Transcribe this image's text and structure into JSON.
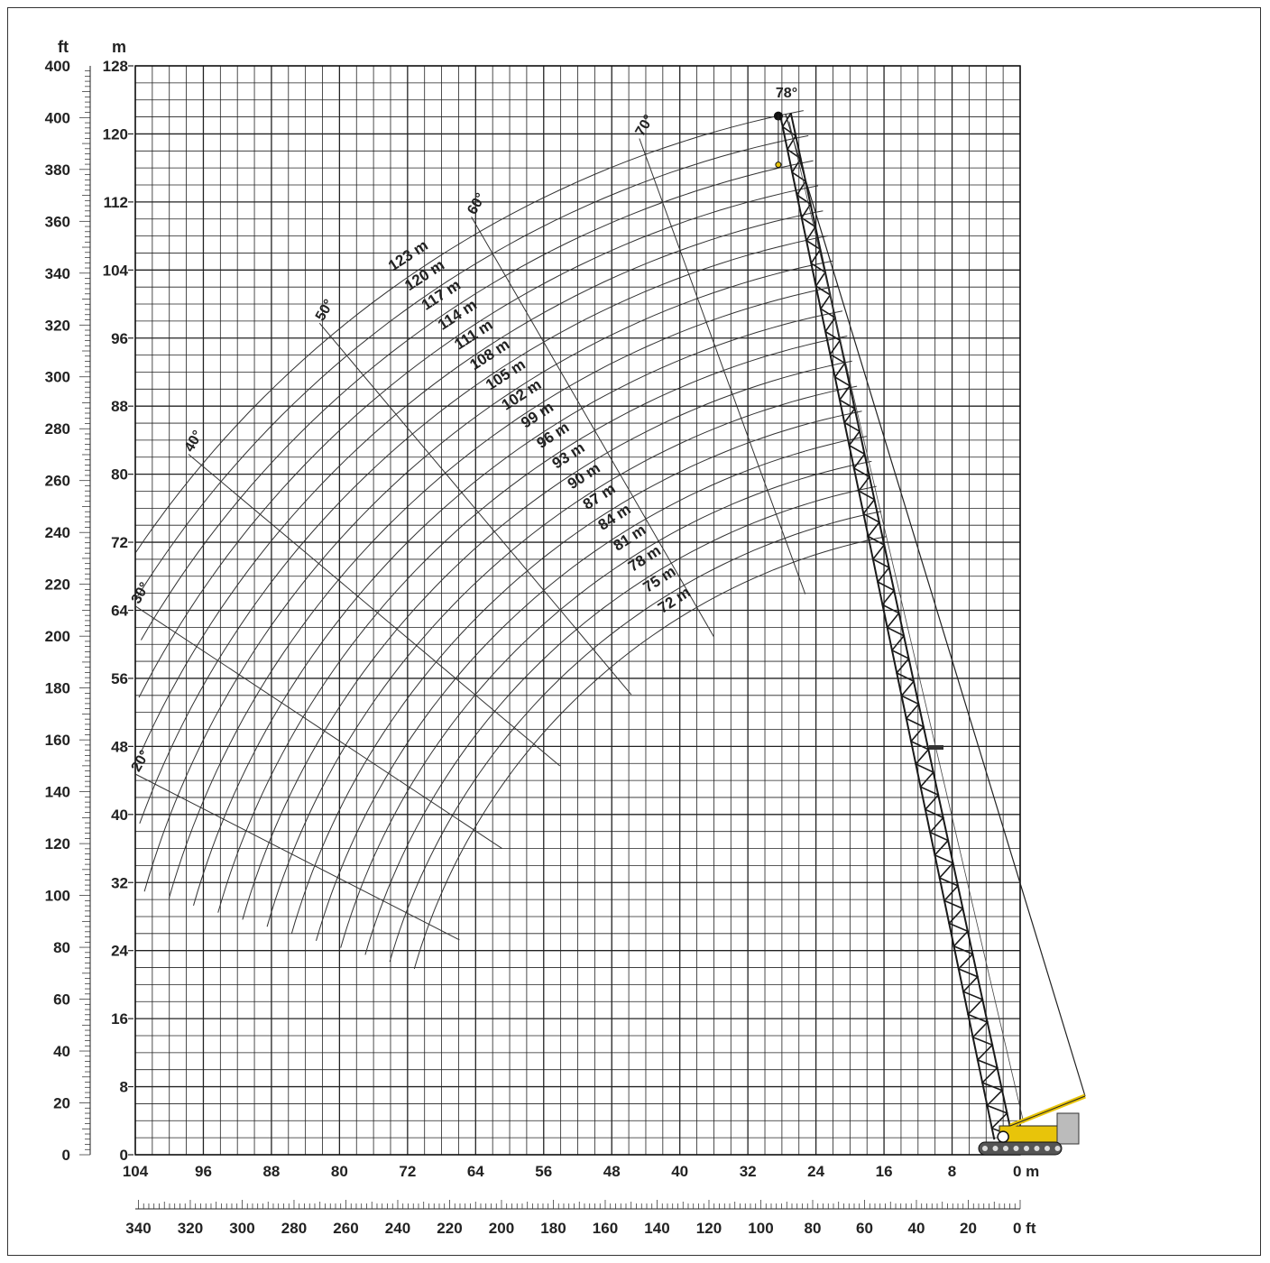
{
  "chart_data": {
    "type": "line",
    "title": "",
    "xlabel": "",
    "ylabel": "",
    "units": {
      "y_primary": "m",
      "y_secondary": "ft",
      "x_primary": "m",
      "x_secondary": "ft"
    },
    "xlim_m": [
      0,
      104
    ],
    "ylim_m": [
      0,
      128
    ],
    "grid": true,
    "x_ticks_m": [
      "104",
      "96",
      "88",
      "80",
      "72",
      "64",
      "56",
      "48",
      "40",
      "32",
      "24",
      "16",
      "8",
      "0 m"
    ],
    "x_ticks_ft": [
      "340",
      "320",
      "300",
      "280",
      "260",
      "240",
      "220",
      "200",
      "180",
      "160",
      "140",
      "120",
      "100",
      "80",
      "60",
      "40",
      "20",
      "0 ft"
    ],
    "y_ticks_m": [
      "0",
      "8",
      "16",
      "24",
      "32",
      "40",
      "48",
      "56",
      "64",
      "72",
      "80",
      "88",
      "96",
      "104",
      "112",
      "120",
      "128"
    ],
    "y_ticks_ft": [
      "0",
      "20",
      "40",
      "60",
      "80",
      "100",
      "120",
      "140",
      "160",
      "180",
      "200",
      "220",
      "240",
      "260",
      "280",
      "300",
      "320",
      "340",
      "360",
      "380",
      "400",
      "400"
    ],
    "series_note_lengths_m": [
      123,
      120,
      117,
      114,
      111,
      108,
      105,
      102,
      99,
      96,
      93,
      90,
      87,
      84,
      81,
      78,
      75,
      72
    ],
    "series_labels": [
      "123 m",
      "120 m",
      "117 m",
      "114 m",
      "111 m",
      "108 m",
      "105 m",
      "102 m",
      "99 m",
      "96 m",
      "93 m",
      "90 m",
      "87 m",
      "84 m",
      "81 m",
      "78 m",
      "75 m",
      "72 m"
    ],
    "angle_labels": [
      "20°",
      "30°",
      "40°",
      "50°",
      "60°",
      "70°",
      "78°"
    ],
    "angles_deg": [
      20,
      30,
      40,
      50,
      60,
      70,
      78
    ],
    "pivot_m": {
      "radius": 2,
      "height": 2
    },
    "jib_curve_angle_range_deg": [
      20,
      78
    ],
    "crane_boom_angle_deg": 78,
    "colors": {
      "grid": "#222222",
      "curves": "#333333",
      "crane_body": "#e8c40a",
      "crane_lattice": "#1a1a1a"
    }
  }
}
